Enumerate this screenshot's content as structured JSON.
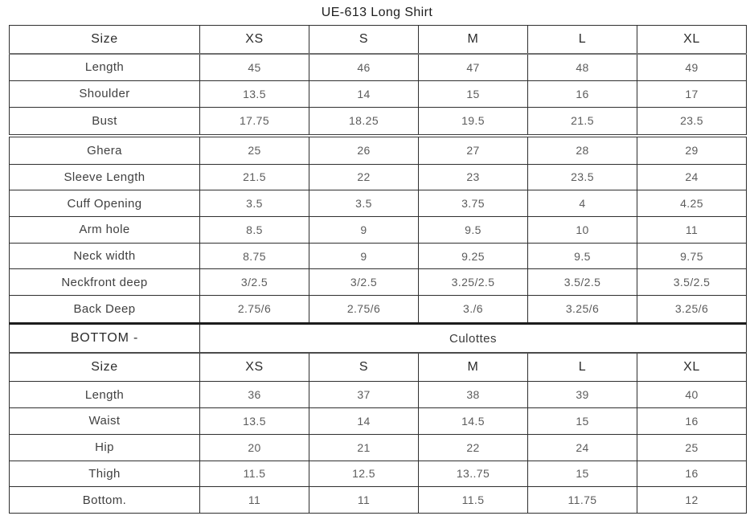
{
  "title": "UE-613 Long Shirt",
  "shirt_table": {
    "header": [
      "Size",
      "XS",
      "S",
      "M",
      "L",
      "XL"
    ],
    "rows": [
      {
        "label": "Length",
        "values": [
          "45",
          "46",
          "47",
          "48",
          "49"
        ]
      },
      {
        "label": "Shoulder",
        "values": [
          "13.5",
          "14",
          "15",
          "16",
          "17"
        ]
      },
      {
        "label": "Bust",
        "values": [
          "17.75",
          "18.25",
          "19.5",
          "21.5",
          "23.5"
        ]
      },
      {
        "label": "Ghera",
        "values": [
          "25",
          "26",
          "27",
          "28",
          "29"
        ]
      },
      {
        "label": "Sleeve Length",
        "values": [
          "21.5",
          "22",
          "23",
          "23.5",
          "24"
        ]
      },
      {
        "label": "Cuff Opening",
        "values": [
          "3.5",
          "3.5",
          "3.75",
          "4",
          "4.25"
        ]
      },
      {
        "label": "Arm hole",
        "values": [
          "8.5",
          "9",
          "9.5",
          "10",
          "11"
        ]
      },
      {
        "label": "Neck width",
        "values": [
          "8.75",
          "9",
          "9.25",
          "9.5",
          "9.75"
        ]
      },
      {
        "label": "Neckfront deep",
        "values": [
          "3/2.5",
          "3/2.5",
          "3.25/2.5",
          "3.5/2.5",
          "3.5/2.5"
        ]
      },
      {
        "label": "Back Deep",
        "values": [
          "2.75/6",
          "2.75/6",
          "3./6",
          "3.25/6",
          "3.25/6"
        ]
      }
    ]
  },
  "bottom_section": {
    "section_label": "BOTTOM -",
    "section_name": "Culottes",
    "header": [
      "Size",
      "XS",
      "S",
      "M",
      "L",
      "XL"
    ],
    "rows": [
      {
        "label": "Length",
        "values": [
          "36",
          "37",
          "38",
          "39",
          "40"
        ]
      },
      {
        "label": "Waist",
        "values": [
          "13.5",
          "14",
          "14.5",
          "15",
          "16"
        ]
      },
      {
        "label": "Hip",
        "values": [
          "20",
          "21",
          "22",
          "24",
          "25"
        ]
      },
      {
        "label": "Thigh",
        "values": [
          "11.5",
          "12.5",
          "13..75",
          "15",
          "16"
        ]
      },
      {
        "label": "Bottom.",
        "values": [
          "11",
          "11",
          "11.5",
          "11.75",
          "12"
        ]
      }
    ]
  },
  "colors": {
    "border_dark": "#2f2f2f",
    "rule_gray": "#6f6f6f",
    "text_dark": "#2c2c2c",
    "text_gray": "#5c5c5c",
    "background": "#ffffff"
  }
}
